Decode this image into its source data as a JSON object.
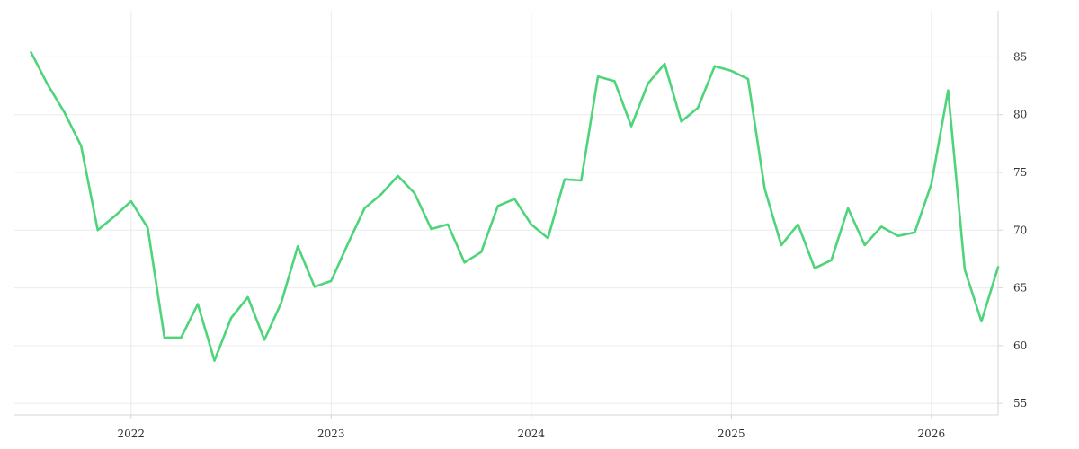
{
  "chart_data": {
    "type": "line",
    "title": "",
    "xlabel": "",
    "ylabel": "",
    "x_ticks": [
      "2022",
      "2023",
      "2024",
      "2025",
      "2026"
    ],
    "y_ticks": [
      55,
      60,
      65,
      70,
      75,
      80,
      85
    ],
    "ylim": [
      54,
      89
    ],
    "xlim": [
      "2021-06-01",
      "2026-05-01"
    ],
    "grid": true,
    "y_axis_position": "right",
    "series": [
      {
        "color": "#4ed47a",
        "points": [
          [
            "2021-07",
            85.4
          ],
          [
            "2021-08",
            82.6
          ],
          [
            "2021-09",
            80.2
          ],
          [
            "2021-10",
            77.3
          ],
          [
            "2021-11",
            70.0
          ],
          [
            "2021-12",
            71.2
          ],
          [
            "2022-01",
            72.5
          ],
          [
            "2022-02",
            70.2
          ],
          [
            "2022-03",
            60.7
          ],
          [
            "2022-04",
            60.7
          ],
          [
            "2022-05",
            63.6
          ],
          [
            "2022-06",
            58.7
          ],
          [
            "2022-07",
            62.4
          ],
          [
            "2022-08",
            64.2
          ],
          [
            "2022-09",
            60.5
          ],
          [
            "2022-10",
            63.7
          ],
          [
            "2022-11",
            68.6
          ],
          [
            "2022-12",
            65.1
          ],
          [
            "2023-01",
            65.6
          ],
          [
            "2023-02",
            68.8
          ],
          [
            "2023-03",
            71.9
          ],
          [
            "2023-04",
            73.1
          ],
          [
            "2023-05",
            74.7
          ],
          [
            "2023-06",
            73.2
          ],
          [
            "2023-07",
            70.1
          ],
          [
            "2023-08",
            70.5
          ],
          [
            "2023-09",
            67.2
          ],
          [
            "2023-10",
            68.1
          ],
          [
            "2023-11",
            72.1
          ],
          [
            "2023-12",
            72.7
          ],
          [
            "2024-01",
            70.5
          ],
          [
            "2024-02",
            69.3
          ],
          [
            "2024-03",
            74.4
          ],
          [
            "2024-04",
            74.3
          ],
          [
            "2024-05",
            83.3
          ],
          [
            "2024-06",
            82.9
          ],
          [
            "2024-07",
            79.0
          ],
          [
            "2024-08",
            82.7
          ],
          [
            "2024-09",
            84.4
          ],
          [
            "2024-10",
            79.4
          ],
          [
            "2024-11",
            80.6
          ],
          [
            "2024-12",
            84.2
          ],
          [
            "2025-01",
            83.8
          ],
          [
            "2025-02",
            83.1
          ],
          [
            "2025-03",
            73.6
          ],
          [
            "2025-04",
            68.7
          ],
          [
            "2025-05",
            70.5
          ],
          [
            "2025-06",
            66.7
          ],
          [
            "2025-07",
            67.4
          ],
          [
            "2025-08",
            71.9
          ],
          [
            "2025-09",
            68.7
          ],
          [
            "2025-10",
            70.3
          ],
          [
            "2025-11",
            69.5
          ],
          [
            "2025-12",
            69.8
          ],
          [
            "2026-01",
            74.0
          ],
          [
            "2026-02",
            82.1
          ],
          [
            "2026-03",
            66.6
          ],
          [
            "2026-04",
            62.1
          ],
          [
            "2026-05",
            66.8
          ]
        ]
      }
    ]
  }
}
